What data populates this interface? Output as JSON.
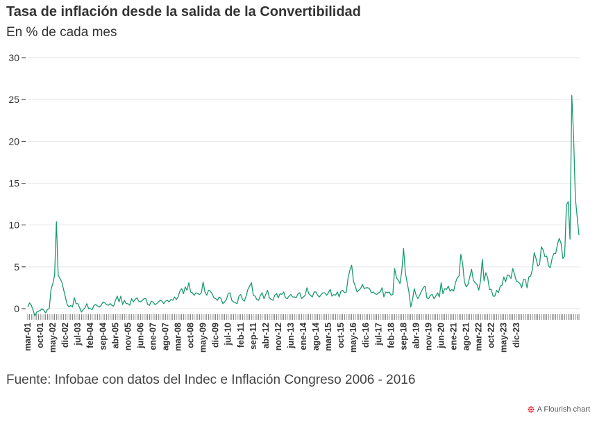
{
  "source_text": "Fuente: Infobae con datos del Indec e Inflación Congreso 2006 - 2016",
  "credit_text": "A Flourish chart",
  "chart_data": {
    "type": "line",
    "title": "Tasa de inflación desde la salida de la Convertibilidad",
    "subtitle": "En % de cada mes",
    "xlabel": "",
    "ylabel": "",
    "ylim": [
      -1.5,
      30
    ],
    "yticks": [
      0,
      5,
      10,
      15,
      20,
      25,
      30
    ],
    "grid": true,
    "line_color": "#1a9a6c",
    "x_start": "2001-03",
    "x_end": "2024-02",
    "xtick_labels": [
      "mar-01",
      "oct-01",
      "may-02",
      "dic-02",
      "jul-03",
      "feb-04",
      "sep-04",
      "abr-05",
      "nov-05",
      "jun-06",
      "ene-07",
      "ago-07",
      "mar-08",
      "oct-08",
      "may-09",
      "dic-09",
      "jul-10",
      "feb-11",
      "sep-11",
      "abr-12",
      "nov-12",
      "jun-13",
      "ene-14",
      "ago-14",
      "mar-15",
      "oct-15",
      "may-16",
      "dic-16",
      "jul-17",
      "feb-18",
      "sep-18",
      "abr-19",
      "nov-19",
      "jun-20",
      "ene-21",
      "ago-21",
      "mar-22",
      "oct-22",
      "may-23",
      "dic-23"
    ],
    "series": [
      {
        "values": [
          0.2,
          0.7,
          0.4,
          -0.2,
          -0.9,
          -0.4,
          -0.3,
          -0.2,
          0.0,
          -0.2,
          -0.5,
          -0.1,
          0.0,
          2.3,
          3.0,
          4.0,
          10.4,
          4.0,
          3.6,
          3.2,
          2.3,
          1.4,
          0.5,
          0.2,
          0.4,
          0.2,
          1.3,
          0.6,
          0.6,
          0.1,
          -0.4,
          -0.1,
          0.1,
          0.6,
          0.0,
          0.0,
          -0.1,
          0.4,
          0.5,
          0.3,
          0.2,
          0.4,
          0.8,
          0.7,
          0.5,
          0.4,
          0.6,
          0.4,
          0.3,
          1.0,
          1.5,
          0.8,
          1.5,
          0.5,
          1.0,
          0.6,
          0.6,
          0.4,
          1.2,
          0.8,
          1.1,
          1.3,
          0.9,
          0.8,
          1.0,
          1.2,
          1.2,
          0.5,
          0.4,
          0.9,
          0.8,
          0.5,
          0.6,
          0.8,
          1.0,
          0.9,
          0.6,
          0.9,
          1.0,
          0.8,
          1.1,
          1.0,
          1.4,
          1.1,
          1.4,
          2.1,
          2.4,
          1.8,
          2.6,
          2.2,
          3.1,
          2.0,
          1.9,
          1.6,
          1.9,
          1.8,
          1.7,
          1.9,
          3.2,
          2.0,
          1.6,
          2.2,
          2.1,
          1.8,
          1.3,
          1.2,
          1.0,
          1.4,
          1.2,
          0.6,
          0.8,
          1.1,
          1.8,
          1.9,
          1.0,
          0.8,
          0.7,
          0.6,
          1.5,
          1.7,
          1.1,
          0.9,
          1.5,
          2.3,
          2.7,
          3.1,
          1.6,
          1.5,
          1.1,
          1.0,
          1.6,
          1.9,
          1.2,
          1.7,
          2.2,
          1.3,
          1.1,
          1.0,
          1.6,
          1.8,
          1.3,
          1.8,
          1.7,
          2.0,
          1.3,
          1.2,
          1.5,
          1.7,
          1.4,
          1.4,
          1.3,
          1.8,
          1.9,
          1.2,
          1.4,
          1.6,
          2.5,
          1.8,
          1.6,
          1.4,
          2.0,
          2.0,
          1.6,
          1.4,
          1.7,
          1.9,
          1.9,
          1.6,
          1.9,
          2.3,
          1.5,
          1.7,
          1.6,
          2.0,
          1.4,
          2.1,
          2.2,
          1.9,
          2.0,
          3.7,
          4.6,
          5.2,
          3.3,
          2.7,
          2.0,
          2.2,
          2.4,
          2.9,
          2.4,
          2.5,
          2.5,
          2.4,
          1.9,
          2.0,
          1.8,
          1.7,
          1.9,
          2.0,
          2.5,
          1.4,
          2.0,
          1.9,
          2.0,
          1.6,
          1.7,
          4.8,
          3.7,
          3.4,
          3.0,
          4.5,
          7.2,
          4.3,
          3.1,
          2.0,
          0.2,
          1.1,
          2.4,
          1.6,
          1.2,
          1.6,
          2.1,
          2.5,
          2.7,
          1.3,
          1.2,
          1.6,
          1.7,
          1.2,
          1.5,
          1.9,
          1.4,
          3.1,
          1.8,
          2.4,
          2.3,
          2.7,
          2.1,
          2.3,
          2.1,
          3.1,
          3.7,
          3.9,
          6.5,
          5.4,
          3.2,
          2.6,
          2.9,
          3.8,
          4.7,
          3.4,
          3.1,
          2.9,
          2.2,
          3.3,
          5.9,
          3.3,
          4.3,
          3.7,
          2.3,
          2.3,
          1.5,
          1.5,
          2.2,
          1.9,
          2.7,
          2.8,
          3.8,
          3.2,
          4.0,
          4.0,
          3.6,
          4.8,
          4.1,
          3.3,
          3.2,
          3.0,
          2.5,
          3.5,
          3.5,
          2.5,
          3.8,
          3.9,
          4.7,
          6.7,
          6.0,
          5.1,
          5.3,
          7.4,
          7.0,
          6.2,
          6.3,
          5.1,
          4.9,
          6.0,
          6.6,
          6.6,
          7.7,
          8.4,
          7.8,
          6.0,
          6.3,
          12.4,
          12.8,
          8.3,
          25.5,
          20.6,
          13.2,
          11.0,
          8.8
        ]
      }
    ]
  }
}
